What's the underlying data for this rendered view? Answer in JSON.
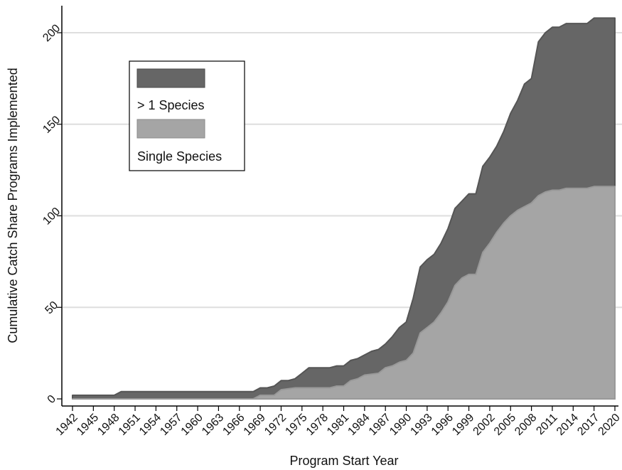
{
  "chart_data": {
    "type": "area",
    "stacked": true,
    "xlabel": "Program Start Year",
    "ylabel": "Cumulative Catch Share Programs Implemented",
    "xlim": [
      1942,
      2020
    ],
    "ylim": [
      0,
      200
    ],
    "x_ticks": [
      1942,
      1945,
      1948,
      1951,
      1954,
      1957,
      1960,
      1963,
      1966,
      1969,
      1972,
      1975,
      1978,
      1981,
      1984,
      1987,
      1990,
      1993,
      1996,
      1999,
      2002,
      2005,
      2008,
      2011,
      2014,
      2017,
      2020
    ],
    "y_ticks": [
      0,
      50,
      100,
      150,
      200
    ],
    "grid": "horizontal",
    "legend": {
      "position": "top-left",
      "entries": [
        "> 1 Species",
        "Single Species"
      ]
    },
    "series": [
      {
        "name": "Single Species",
        "color": "#a5a5a5",
        "points": [
          [
            1942,
            0
          ],
          [
            1968,
            0
          ],
          [
            1969,
            2
          ],
          [
            1971,
            2
          ],
          [
            1972,
            5
          ],
          [
            1974,
            6
          ],
          [
            1975,
            6
          ],
          [
            1977,
            6
          ],
          [
            1979,
            6
          ],
          [
            1980,
            7
          ],
          [
            1981,
            7
          ],
          [
            1982,
            10
          ],
          [
            1983,
            11
          ],
          [
            1984,
            13
          ],
          [
            1986,
            14
          ],
          [
            1987,
            17
          ],
          [
            1988,
            18
          ],
          [
            1989,
            20
          ],
          [
            1990,
            21
          ],
          [
            1991,
            25
          ],
          [
            1992,
            36
          ],
          [
            1993,
            39
          ],
          [
            1994,
            42
          ],
          [
            1995,
            47
          ],
          [
            1996,
            53
          ],
          [
            1997,
            62
          ],
          [
            1998,
            66
          ],
          [
            1999,
            68
          ],
          [
            2000,
            68
          ],
          [
            2001,
            80
          ],
          [
            2002,
            85
          ],
          [
            2003,
            91
          ],
          [
            2004,
            96
          ],
          [
            2005,
            100
          ],
          [
            2006,
            103
          ],
          [
            2007,
            105
          ],
          [
            2008,
            107
          ],
          [
            2009,
            111
          ],
          [
            2010,
            113
          ],
          [
            2011,
            114
          ],
          [
            2012,
            114
          ],
          [
            2013,
            115
          ],
          [
            2016,
            115
          ],
          [
            2017,
            116
          ],
          [
            2020,
            116
          ]
        ]
      },
      {
        "name": "> 1 Species",
        "color": "#666666",
        "points": [
          [
            1942,
            2
          ],
          [
            1948,
            2
          ],
          [
            1949,
            4
          ],
          [
            1968,
            4
          ],
          [
            1969,
            6
          ],
          [
            1970,
            6
          ],
          [
            1971,
            7
          ],
          [
            1972,
            10
          ],
          [
            1973,
            10
          ],
          [
            1974,
            11
          ],
          [
            1975,
            14
          ],
          [
            1976,
            17
          ],
          [
            1979,
            17
          ],
          [
            1980,
            18
          ],
          [
            1981,
            18
          ],
          [
            1982,
            21
          ],
          [
            1983,
            22
          ],
          [
            1984,
            24
          ],
          [
            1985,
            26
          ],
          [
            1986,
            27
          ],
          [
            1987,
            30
          ],
          [
            1988,
            34
          ],
          [
            1989,
            39
          ],
          [
            1990,
            42
          ],
          [
            1991,
            55
          ],
          [
            1992,
            72
          ],
          [
            1993,
            76
          ],
          [
            1994,
            79
          ],
          [
            1995,
            85
          ],
          [
            1996,
            93
          ],
          [
            1997,
            104
          ],
          [
            1998,
            108
          ],
          [
            1999,
            112
          ],
          [
            2000,
            112
          ],
          [
            2001,
            127
          ],
          [
            2002,
            132
          ],
          [
            2003,
            138
          ],
          [
            2004,
            146
          ],
          [
            2005,
            156
          ],
          [
            2006,
            163
          ],
          [
            2007,
            172
          ],
          [
            2008,
            175
          ],
          [
            2009,
            195
          ],
          [
            2010,
            200
          ],
          [
            2011,
            203
          ],
          [
            2012,
            203
          ],
          [
            2013,
            205
          ],
          [
            2016,
            205
          ],
          [
            2017,
            208
          ],
          [
            2020,
            208
          ]
        ]
      }
    ]
  }
}
